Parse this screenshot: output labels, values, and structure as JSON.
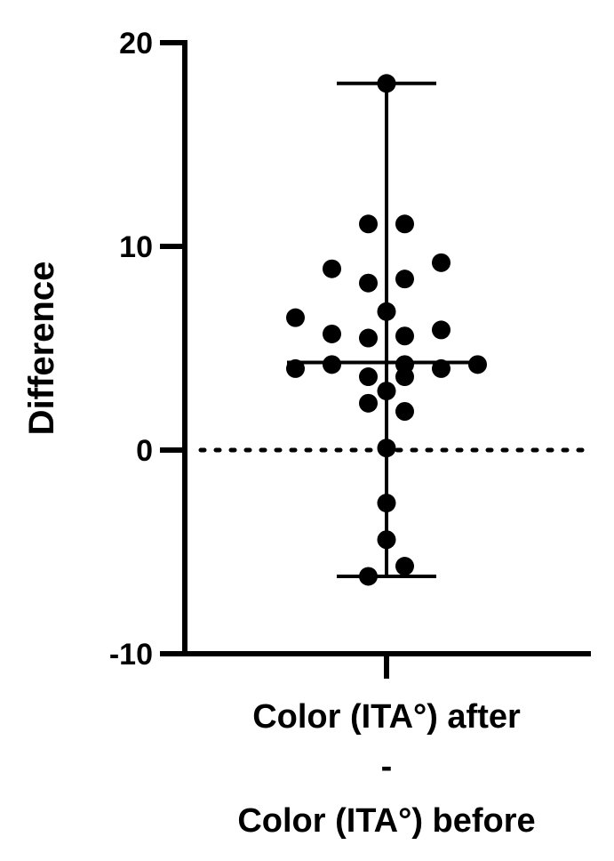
{
  "chart_data": {
    "type": "scatter",
    "title": "",
    "ylabel": "Difference",
    "xlabel_lines": [
      "Color (ITA°) after",
      "-",
      "Color (ITA°) before"
    ],
    "ylim": [
      -10,
      20
    ],
    "yticks": [
      -10,
      0,
      10,
      20
    ],
    "ytick_labels": [
      "-10",
      "0",
      "10",
      "20"
    ],
    "reference_line": {
      "y": 0,
      "style": "dotted"
    },
    "summary": {
      "median": 4.3,
      "min": -6.2,
      "max": 18.0
    },
    "points": [
      18.0,
      11.1,
      11.1,
      9.2,
      8.9,
      8.4,
      8.2,
      6.8,
      6.5,
      5.9,
      5.7,
      5.6,
      5.5,
      4.2,
      4.2,
      4.2,
      4.0,
      4.0,
      3.6,
      3.6,
      2.9,
      2.3,
      1.9,
      0.1,
      -2.6,
      -4.4,
      -5.7,
      -6.2
    ],
    "point_offsets": [
      0,
      -0.5,
      0.5,
      1.5,
      -1.5,
      0.5,
      -0.5,
      0,
      -2.5,
      1.5,
      -1.5,
      0.5,
      -0.5,
      -1.5,
      0.5,
      2.5,
      -2.5,
      1.5,
      -0.5,
      0.5,
      0,
      -0.5,
      0.5,
      0,
      0,
      0,
      0.5,
      -0.5
    ]
  }
}
